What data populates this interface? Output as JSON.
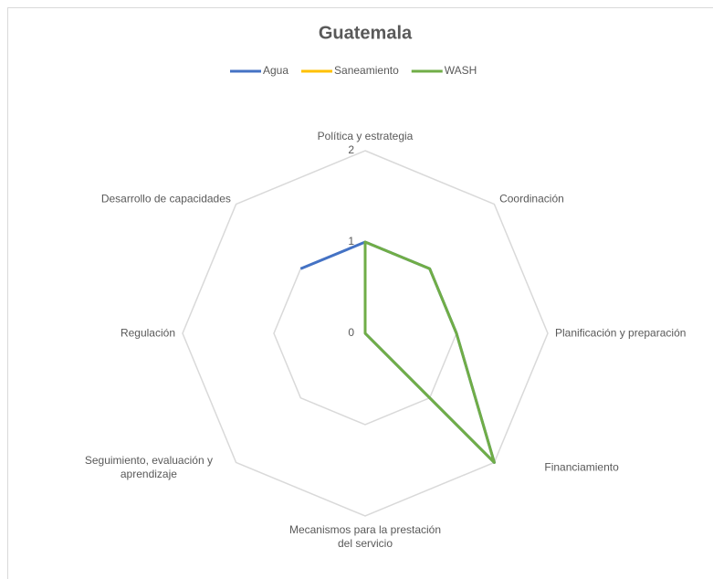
{
  "chart_data": {
    "type": "radar",
    "title": "Guatemala",
    "categories": [
      "Política y estrategia",
      "Coordinación",
      "Planificación y preparación",
      "Financiamiento",
      "Mecanismos para la prestación del servicio",
      "Seguimiento, evaluación y aprendizaje",
      "Regulación",
      "Desarrollo de capacidades"
    ],
    "series": [
      {
        "name": "Agua",
        "color": "#4472c4",
        "values": [
          1,
          1,
          1,
          2,
          0,
          0,
          null,
          1
        ]
      },
      {
        "name": "Saneamiento",
        "color": "#ffc000",
        "values": [
          null,
          null,
          null,
          null,
          null,
          null,
          null,
          null
        ]
      },
      {
        "name": "WASH",
        "color": "#70ad47",
        "values": [
          1,
          1,
          1,
          2,
          0,
          0,
          0,
          0
        ]
      }
    ],
    "ylim": [
      0,
      2
    ],
    "yticks": [
      0,
      1,
      2
    ],
    "grid": true,
    "legend": "top"
  }
}
